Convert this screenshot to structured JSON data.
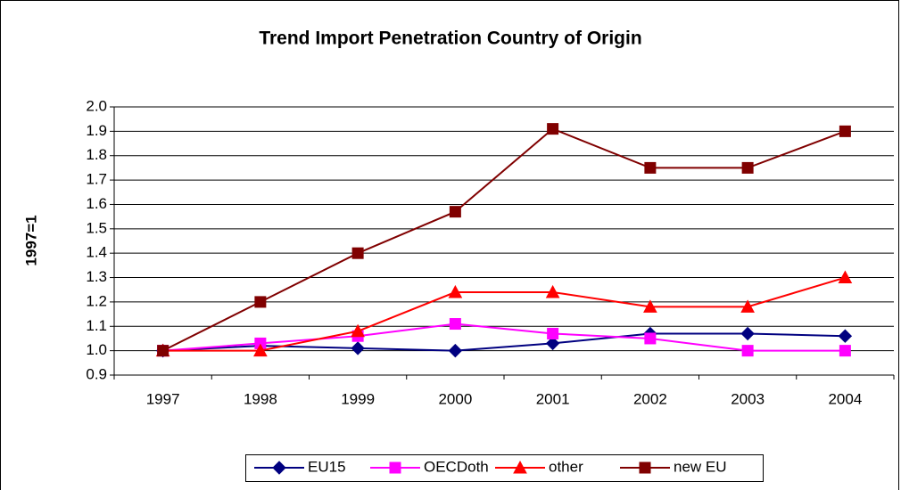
{
  "chart_data": {
    "type": "line",
    "title": "Trend Import Penetration Country of Origin",
    "y_label": "1997=1",
    "categories": [
      "1997",
      "1998",
      "1999",
      "2000",
      "2001",
      "2002",
      "2003",
      "2004"
    ],
    "series": [
      {
        "name": "EU15",
        "color": "#000080",
        "marker": "diamond",
        "values": [
          1.0,
          1.02,
          1.01,
          1.0,
          1.03,
          1.07,
          1.07,
          1.06
        ]
      },
      {
        "name": "OECDoth",
        "color": "#FF00FF",
        "marker": "square",
        "values": [
          1.0,
          1.03,
          1.06,
          1.11,
          1.07,
          1.05,
          1.0,
          1.0
        ]
      },
      {
        "name": "other",
        "color": "#FF0000",
        "marker": "triangle",
        "values": [
          1.0,
          1.0,
          1.08,
          1.24,
          1.24,
          1.18,
          1.18,
          1.3
        ]
      },
      {
        "name": "new EU",
        "color": "#800000",
        "marker": "square",
        "values": [
          1.0,
          1.2,
          1.4,
          1.57,
          1.91,
          1.75,
          1.75,
          1.9
        ]
      }
    ],
    "ylim": [
      0.9,
      2.0
    ],
    "yticks": [
      0.9,
      {
        "value": 1,
        "label": "1.0"
      },
      1.1,
      1.2,
      1.3,
      1.4,
      1.5,
      1.6,
      1.7,
      1.8,
      1.9,
      {
        "value": 2,
        "label": "2.0"
      }
    ],
    "grid": true,
    "legend": "bottom"
  }
}
